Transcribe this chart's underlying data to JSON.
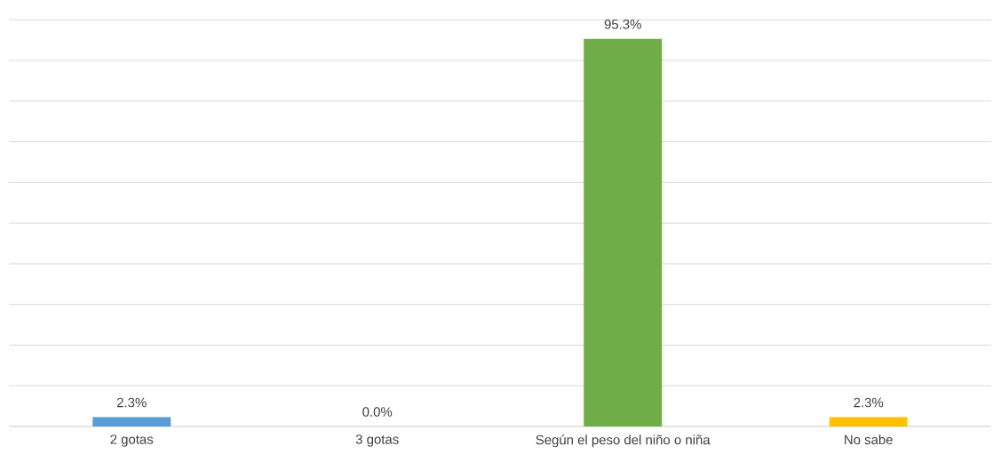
{
  "chart_data": {
    "type": "bar",
    "categories": [
      "2 gotas",
      "3 gotas",
      "Según el peso del niño o niña",
      "No sabe"
    ],
    "values": [
      2.3,
      0.0,
      95.3,
      2.3
    ],
    "colors": [
      "#5b9bd5",
      "#a5a5a5",
      "#70ad47",
      "#ffc000"
    ],
    "value_labels": [
      "2.3%",
      "0.0%",
      "95.3%",
      "2.3%"
    ],
    "grid": "y",
    "tick_labels": "x"
  }
}
